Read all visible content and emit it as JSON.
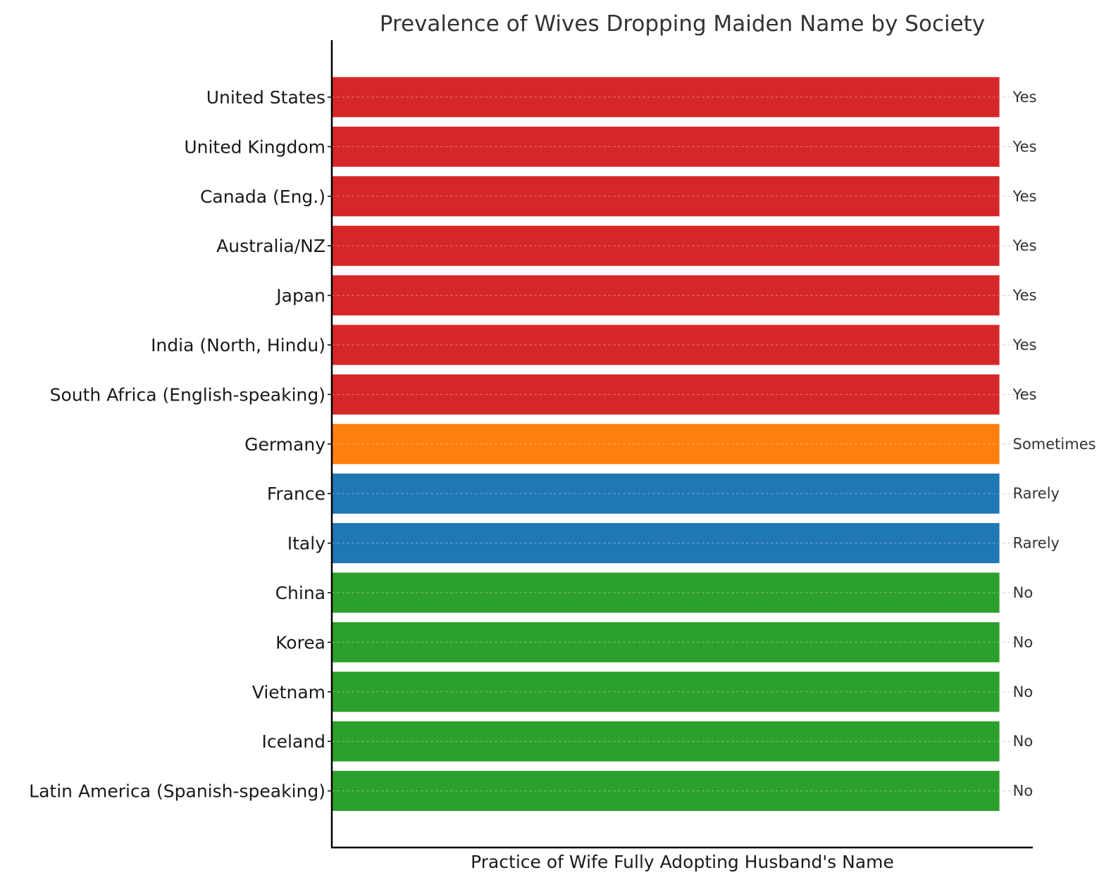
{
  "chart_data": {
    "type": "bar",
    "orientation": "horizontal",
    "title": "Prevalence of Wives Dropping Maiden Name by Society",
    "xlabel": "Practice of Wife Fully Adopting Husband's Name",
    "ylabel": "",
    "categories": [
      "United States",
      "United Kingdom",
      "Canada (Eng.)",
      "Australia/NZ",
      "Japan",
      "India (North, Hindu)",
      "South Africa (English-speaking)",
      "Germany",
      "France",
      "Italy",
      "China",
      "Korea",
      "Vietnam",
      "Iceland",
      "Latin America (Spanish-speaking)"
    ],
    "values": [
      1,
      1,
      1,
      1,
      1,
      1,
      1,
      1,
      1,
      1,
      1,
      1,
      1,
      1,
      1
    ],
    "labels": [
      "Yes",
      "Yes",
      "Yes",
      "Yes",
      "Yes",
      "Yes",
      "Yes",
      "Sometimes",
      "Rarely",
      "Rarely",
      "No",
      "No",
      "No",
      "No",
      "No"
    ],
    "colors": {
      "Yes": "#d62728",
      "Sometimes": "#ff7f0e",
      "Rarely": "#1f77b4",
      "No": "#2ca02c"
    },
    "xlim": [
      0,
      1.05
    ],
    "grid": "horizontal dashed",
    "legend": "none"
  }
}
